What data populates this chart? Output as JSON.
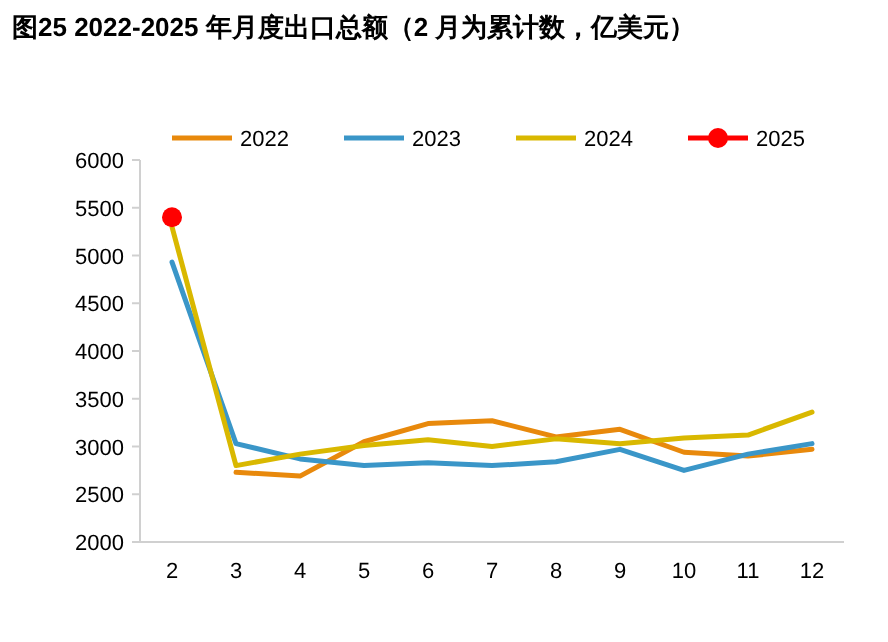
{
  "chart_data": {
    "type": "line",
    "title": "图25 2022-2025 年月度出口总额（2 月为累计数，亿美元）",
    "categories": [
      "2",
      "3",
      "4",
      "5",
      "6",
      "7",
      "8",
      "9",
      "10",
      "11",
      "12"
    ],
    "ylim": [
      2000,
      6000
    ],
    "yticks": [
      2000,
      2500,
      3000,
      3500,
      4000,
      4500,
      5000,
      5500,
      6000
    ],
    "legend": "top",
    "grid": false,
    "marker": "none",
    "line_style": "solid",
    "series": [
      {
        "name": "2022",
        "color": "#e8890c",
        "values": [
          null,
          2730,
          2690,
          3050,
          3240,
          3270,
          3100,
          3180,
          2940,
          2900,
          2970
        ]
      },
      {
        "name": "2023",
        "color": "#3a96c8",
        "values": [
          4930,
          3030,
          2870,
          2800,
          2830,
          2800,
          2840,
          2970,
          2750,
          2920,
          3030
        ]
      },
      {
        "name": "2024",
        "color": "#d9b800",
        "values": [
          5300,
          2800,
          2920,
          3010,
          3070,
          3000,
          3080,
          3030,
          3090,
          3120,
          3360
        ]
      },
      {
        "name": "2025",
        "color": "#ff0000",
        "marker": "circle",
        "values": [
          5400,
          null,
          null,
          null,
          null,
          null,
          null,
          null,
          null,
          null,
          null
        ]
      }
    ]
  }
}
